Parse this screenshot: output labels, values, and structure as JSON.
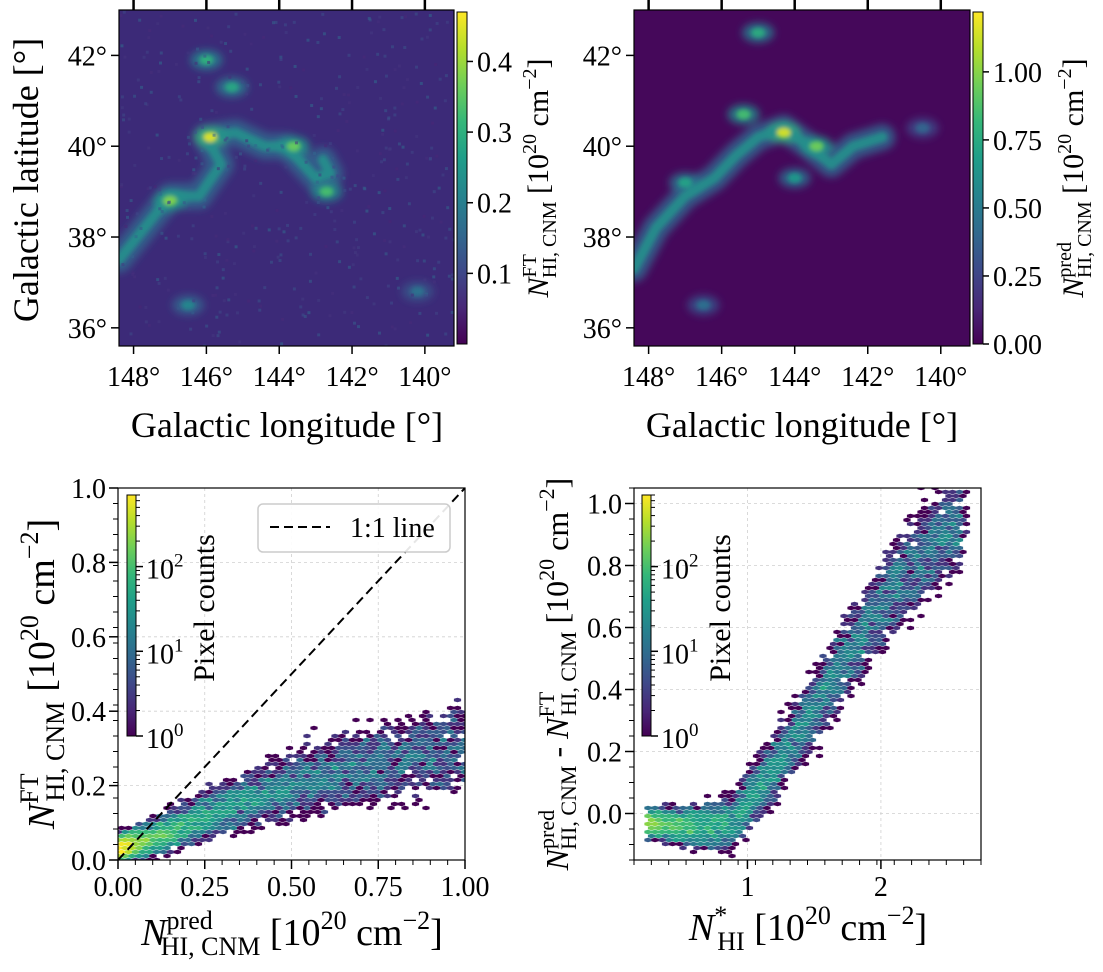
{
  "figure": {
    "colormap": [
      "#440154",
      "#482878",
      "#3e4989",
      "#31688e",
      "#26828e",
      "#1f9e89",
      "#35b779",
      "#6ece58",
      "#b5de2b",
      "#fde725"
    ],
    "background_color": "#ffffff"
  },
  "chart_data": [
    {
      "id": "panel-a",
      "type": "heatmap",
      "title": "",
      "xlabel": "Galactic longitude [°]",
      "ylabel": "Galactic latitude [°]",
      "xlim": [
        148.4,
        139.2
      ],
      "ylim": [
        35.6,
        43.0
      ],
      "xticks": [
        148,
        146,
        144,
        142,
        140
      ],
      "xtick_labels": [
        "148°",
        "146°",
        "144°",
        "142°",
        "140°"
      ],
      "yticks": [
        36,
        38,
        40,
        42
      ],
      "ytick_labels": [
        "36°",
        "38°",
        "40°",
        "42°"
      ],
      "colorbar": {
        "label": "N^FT_HI,CNM [10^20 cm^-2]",
        "label_main": "N",
        "label_sup": "FT",
        "label_sub": "HI, CNM",
        "label_unit": " [10",
        "label_exp": "20",
        "label_tail": " cm",
        "label_exp2": "−2",
        "label_close": "]",
        "range": [
          0.0,
          0.47
        ],
        "ticks": [
          0.1,
          0.2,
          0.3,
          0.4
        ],
        "tick_labels": [
          "0.1",
          "0.2",
          "0.3",
          "0.4"
        ]
      },
      "filament_path_lonlat": [
        [
          148.4,
          37.5
        ],
        [
          147.6,
          38.3
        ],
        [
          147.0,
          38.9
        ],
        [
          146.2,
          38.9
        ],
        [
          145.6,
          39.6
        ],
        [
          146.0,
          40.2
        ],
        [
          145.2,
          40.3
        ],
        [
          144.4,
          40.0
        ],
        [
          143.8,
          40.0
        ],
        [
          143.0,
          39.3
        ],
        [
          142.6,
          39.4
        ],
        [
          142.8,
          39.7
        ]
      ],
      "bright_clumps_lonlat_value": [
        [
          145.9,
          40.2,
          0.45
        ],
        [
          147.0,
          38.8,
          0.38
        ],
        [
          143.6,
          40.0,
          0.36
        ],
        [
          142.7,
          39.0,
          0.33
        ],
        [
          146.0,
          41.9,
          0.3
        ],
        [
          145.3,
          41.3,
          0.28
        ],
        [
          146.5,
          36.5,
          0.22
        ],
        [
          140.2,
          36.8,
          0.18
        ]
      ]
    },
    {
      "id": "panel-b",
      "type": "heatmap",
      "title": "",
      "xlabel": "Galactic longitude [°]",
      "ylabel": "",
      "xlim": [
        148.4,
        139.2
      ],
      "ylim": [
        35.6,
        43.0
      ],
      "xticks": [
        148,
        146,
        144,
        142,
        140
      ],
      "xtick_labels": [
        "148°",
        "146°",
        "144°",
        "142°",
        "140°"
      ],
      "yticks": [
        36,
        38,
        40,
        42
      ],
      "ytick_labels": [
        "36°",
        "38°",
        "40°",
        "42°"
      ],
      "colorbar": {
        "label": "N^pred_HI,CNM [10^20 cm^-2]",
        "label_main": "N",
        "label_sup": "pred",
        "label_sub": "HI, CNM",
        "label_unit": " [10",
        "label_exp": "20",
        "label_tail": " cm",
        "label_exp2": "−2",
        "label_close": "]",
        "range": [
          0.0,
          1.22
        ],
        "ticks": [
          0.0,
          0.25,
          0.5,
          0.75,
          1.0
        ],
        "tick_labels": [
          "0.00",
          "0.25",
          "0.50",
          "0.75",
          "1.00"
        ]
      },
      "filament_path_lonlat": [
        [
          148.4,
          37.3
        ],
        [
          147.8,
          38.2
        ],
        [
          147.0,
          38.9
        ],
        [
          146.2,
          39.3
        ],
        [
          145.6,
          39.8
        ],
        [
          145.0,
          40.2
        ],
        [
          144.3,
          40.4
        ],
        [
          143.6,
          40.0
        ],
        [
          143.0,
          39.6
        ],
        [
          142.4,
          40.0
        ],
        [
          141.6,
          40.2
        ]
      ],
      "bright_clumps_lonlat_value": [
        [
          144.3,
          40.3,
          1.15
        ],
        [
          143.4,
          40.0,
          0.95
        ],
        [
          145.4,
          40.7,
          0.85
        ],
        [
          145.0,
          42.5,
          0.75
        ],
        [
          147.0,
          39.2,
          0.7
        ],
        [
          144.0,
          39.3,
          0.65
        ],
        [
          146.5,
          36.5,
          0.45
        ],
        [
          140.5,
          40.4,
          0.4
        ]
      ]
    },
    {
      "id": "panel-c",
      "type": "scatter",
      "subtype": "hexbin",
      "title": "",
      "xlabel": "N^pred_HI,CNM [10^20 cm^-2]",
      "xlabel_parts": {
        "main": "N",
        "sup": "pred",
        "sub": "HI, CNM",
        "unit": " [10",
        "exp": "20",
        "tail": " cm",
        "exp2": "−2",
        "close": "]"
      },
      "ylabel": "N^FT_HI,CNM [10^20 cm^-2]",
      "ylabel_parts": {
        "main": "N",
        "sup": "FT",
        "sub": "HI, CNM",
        "unit": "[10",
        "exp": "20",
        "tail": " cm",
        "exp2": "−2",
        "close": "]"
      },
      "xlim": [
        0.0,
        1.0
      ],
      "ylim": [
        0.0,
        1.0
      ],
      "xticks": [
        0.0,
        0.25,
        0.5,
        0.75,
        1.0
      ],
      "xtick_labels": [
        "0.00",
        "0.25",
        "0.50",
        "0.75",
        "1.00"
      ],
      "yticks": [
        0.0,
        0.2,
        0.4,
        0.6,
        0.8,
        1.0
      ],
      "ytick_labels": [
        "0.0",
        "0.2",
        "0.4",
        "0.6",
        "0.8",
        "1.0"
      ],
      "grid": true,
      "reference_line": {
        "label": "1:1 line",
        "x": [
          0.0,
          1.0
        ],
        "y": [
          0.0,
          1.0
        ],
        "style": "dashed"
      },
      "legend_placement": "top-right",
      "colorbar": {
        "label": "Pixel counts",
        "scale": "log",
        "range": [
          1,
          700
        ],
        "ticks": [
          1,
          10,
          100
        ],
        "tick_labels": [
          "10",
          "10",
          "10"
        ],
        "tick_exponents": [
          "0",
          "1",
          "2"
        ]
      },
      "density_trend": [
        [
          0.0,
          0.03
        ],
        [
          0.1,
          0.06
        ],
        [
          0.2,
          0.1
        ],
        [
          0.3,
          0.14
        ],
        [
          0.4,
          0.17
        ],
        [
          0.5,
          0.2
        ],
        [
          0.6,
          0.23
        ],
        [
          0.7,
          0.25
        ],
        [
          0.8,
          0.27
        ],
        [
          0.9,
          0.29
        ],
        [
          1.0,
          0.3
        ]
      ],
      "density_spread": 0.07,
      "max_counts": 500
    },
    {
      "id": "panel-d",
      "type": "scatter",
      "subtype": "hexbin",
      "title": "",
      "xlabel": "N^*_HI [10^20 cm^-2]",
      "xlabel_parts": {
        "main": "N",
        "sup": "*",
        "sub": "HI",
        "unit": " [10",
        "exp": "20",
        "tail": " cm",
        "exp2": "−2",
        "close": "]"
      },
      "ylabel": "N^pred_HI,CNM - N^FT_HI,CNM [10^20 cm^-2]",
      "ylabel_parts": {
        "main": "N",
        "sup": "pred",
        "sub": "HI, CNM",
        "minus": " - ",
        "main2": "N",
        "sup2": "FT",
        "sub2": "HI, CNM",
        "unit": " [10",
        "exp": "20",
        "tail": " cm",
        "exp2": "−2",
        "close": "]"
      },
      "xlim": [
        0.15,
        2.75
      ],
      "ylim": [
        -0.15,
        1.05
      ],
      "xticks": [
        1,
        2
      ],
      "xtick_labels": [
        "1",
        "2"
      ],
      "yticks": [
        0.0,
        0.2,
        0.4,
        0.6,
        0.8,
        1.0
      ],
      "ytick_labels": [
        "0.0",
        "0.2",
        "0.4",
        "0.6",
        "0.8",
        "1.0"
      ],
      "grid": true,
      "colorbar": {
        "label": "Pixel counts",
        "scale": "log",
        "range": [
          1,
          700
        ],
        "ticks": [
          1,
          10,
          100
        ],
        "tick_labels": [
          "10",
          "10",
          "10"
        ],
        "tick_exponents": [
          "0",
          "1",
          "2"
        ]
      },
      "density_trend": [
        [
          0.25,
          -0.03
        ],
        [
          0.5,
          -0.04
        ],
        [
          0.75,
          -0.04
        ],
        [
          0.9,
          -0.02
        ],
        [
          1.0,
          0.05
        ],
        [
          1.2,
          0.15
        ],
        [
          1.4,
          0.28
        ],
        [
          1.6,
          0.42
        ],
        [
          1.8,
          0.55
        ],
        [
          2.0,
          0.68
        ],
        [
          2.2,
          0.78
        ],
        [
          2.4,
          0.88
        ],
        [
          2.6,
          0.95
        ]
      ],
      "density_spread": 0.09,
      "max_counts": 600
    }
  ]
}
